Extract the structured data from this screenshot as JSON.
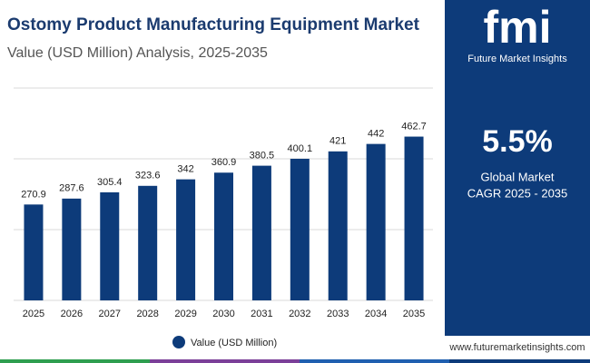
{
  "chart_data": {
    "type": "bar",
    "title": "Ostomy Product Manufacturing Equipment Market",
    "subtitle": "Value (USD Million) Analysis, 2025-2035",
    "categories": [
      "2025",
      "2026",
      "2027",
      "2028",
      "2029",
      "2030",
      "2031",
      "2032",
      "2033",
      "2034",
      "2035"
    ],
    "series": [
      {
        "name": "Value (USD Million)",
        "color": "#0d3b7a",
        "values": [
          270.9,
          287.6,
          305.4,
          323.6,
          342,
          360.9,
          380.5,
          400.1,
          421,
          442,
          462.7
        ]
      }
    ],
    "ylim": [
      0,
      600
    ],
    "yticks": [
      0,
      200,
      400,
      600
    ],
    "grid": true,
    "legend": "bottom"
  },
  "panel": {
    "logo": "fmi",
    "brand": "Future Market Insights",
    "cagr": "5.5%",
    "cagr_label_1": "Global Market",
    "cagr_label_2": "CAGR 2025 - 2035",
    "url": "www.futuremarketinsights.com"
  }
}
